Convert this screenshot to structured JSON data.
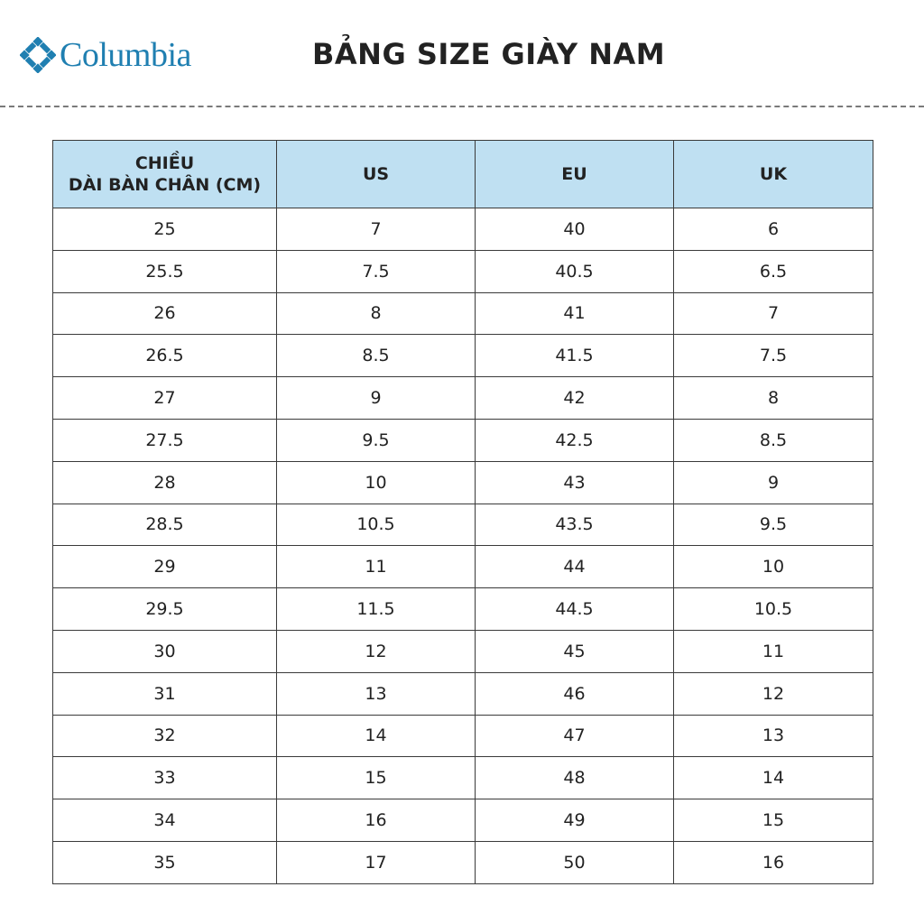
{
  "brand": {
    "name": "Columbia",
    "color": "#1f7fb1"
  },
  "title": "BẢNG SIZE GIÀY NAM",
  "table": {
    "header_color": "#bfe0f2",
    "headers": {
      "cm_line1": "CHIỀU",
      "cm_line2": "DÀI BÀN CHÂN (CM)",
      "us": "US",
      "eu": "EU",
      "uk": "UK"
    },
    "rows": [
      [
        "25",
        "7",
        "40",
        "6"
      ],
      [
        "25.5",
        "7.5",
        "40.5",
        "6.5"
      ],
      [
        "26",
        "8",
        "41",
        "7"
      ],
      [
        "26.5",
        "8.5",
        "41.5",
        "7.5"
      ],
      [
        "27",
        "9",
        "42",
        "8"
      ],
      [
        "27.5",
        "9.5",
        "42.5",
        "8.5"
      ],
      [
        "28",
        "10",
        "43",
        "9"
      ],
      [
        "28.5",
        "10.5",
        "43.5",
        "9.5"
      ],
      [
        "29",
        "11",
        "44",
        "10"
      ],
      [
        "29.5",
        "11.5",
        "44.5",
        "10.5"
      ],
      [
        "30",
        "12",
        "45",
        "11"
      ],
      [
        "31",
        "13",
        "46",
        "12"
      ],
      [
        "32",
        "14",
        "47",
        "13"
      ],
      [
        "33",
        "15",
        "48",
        "14"
      ],
      [
        "34",
        "16",
        "49",
        "15"
      ],
      [
        "35",
        "17",
        "50",
        "16"
      ]
    ]
  }
}
